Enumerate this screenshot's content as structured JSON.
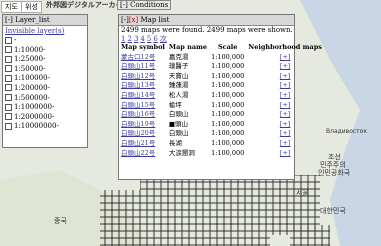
{
  "map_type_tabs": [
    "지도",
    "위성"
  ],
  "logo": "外邦図デジタルアーカイブ",
  "conditions_button": {
    "toggle": "[-]",
    "label": "Conditions"
  },
  "layer_list": {
    "toggle": "[-]",
    "title": "Layer_list",
    "invisible_link": "Invisible layer(s)",
    "layers": [
      "-",
      "1:10000-",
      "1:25000-",
      "1:50000-",
      "1:100000-",
      "1:200000-",
      "1:500000-",
      "1:1000000-",
      "1:2000000-",
      "1:10000000-"
    ]
  },
  "map_list": {
    "toggle": "[-]",
    "close": "[x]",
    "title": "Map list",
    "summary": "2499 maps were found. 2499 maps were shown.",
    "pages": [
      "1",
      "2",
      "3",
      "4",
      "5",
      "6",
      "次"
    ],
    "columns": [
      "Map symbol",
      "Map name",
      "Scale",
      "Neighborhood maps"
    ],
    "rows": [
      [
        "蒙古口12号",
        "嘉克湯",
        "1:100,000",
        "[+]"
      ],
      [
        "白頭山11号",
        "璞醫子",
        "1:100,000",
        "[+]"
      ],
      [
        "白頭山12号",
        "天寶山",
        "1:100,000",
        "[+]"
      ],
      [
        "白頭山13号",
        "鍾蓮湯",
        "1:100,000",
        "[+]"
      ],
      [
        "白頭山14号",
        "松人湯",
        "1:100,000",
        "[+]"
      ],
      [
        "白頭山15号",
        "楡坪",
        "1:100,000",
        "[+]"
      ],
      [
        "白頭山16号",
        "白頭山",
        "1:100,000",
        "[+]"
      ],
      [
        "白頭山19号",
        "■頭山",
        "1:100,000",
        "[+]"
      ],
      [
        "白頭山20号",
        "白頭山",
        "1:100,000",
        "[+]"
      ],
      [
        "白頭山21号",
        "長湖",
        "1:100,000",
        "[+]"
      ],
      [
        "白頭山22号",
        "大涙懇洞",
        "1:100,000",
        "[+]"
      ]
    ]
  },
  "map_labels": [
    "중국",
    "조선",
    "민주주의",
    "인민공화국",
    "대한민국",
    "서울",
    "Владивосток"
  ]
}
